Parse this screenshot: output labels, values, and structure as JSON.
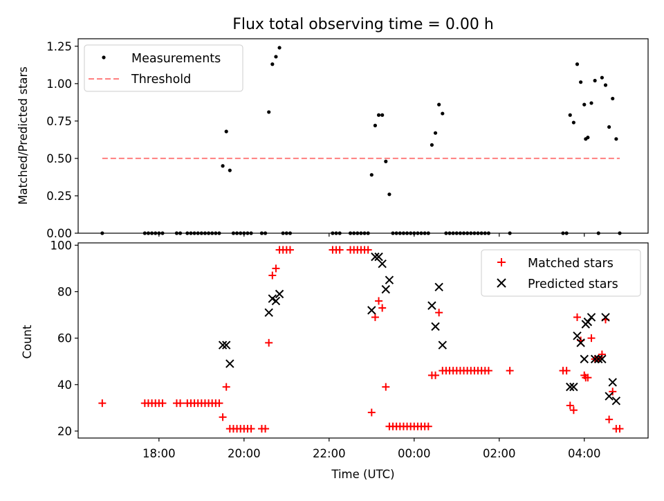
{
  "chart_data": [
    {
      "type": "scatter",
      "title": "Flux total observing time = 0.00 h",
      "xlabel": "",
      "ylabel": "Matched/Predicted stars",
      "xlim": [
        "2021-01-01T16:06",
        "2021-01-02T05:30"
      ],
      "ylim": [
        0,
        1.3
      ],
      "yticks": [
        "0.00",
        "0.25",
        "0.50",
        "0.75",
        "1.00",
        "1.25"
      ],
      "grid": false,
      "legend": "top-left",
      "series": [
        {
          "name": "Measurements",
          "color": "#000000",
          "points": [
            [
              "16:40",
              0
            ],
            [
              "17:40",
              0
            ],
            [
              "17:45",
              0
            ],
            [
              "17:50",
              0
            ],
            [
              "17:55",
              0
            ],
            [
              "18:00",
              0
            ],
            [
              "18:05",
              0
            ],
            [
              "18:25",
              0
            ],
            [
              "18:30",
              0
            ],
            [
              "18:40",
              0
            ],
            [
              "18:45",
              0
            ],
            [
              "18:50",
              0
            ],
            [
              "18:55",
              0
            ],
            [
              "19:00",
              0
            ],
            [
              "19:05",
              0
            ],
            [
              "19:10",
              0
            ],
            [
              "19:15",
              0
            ],
            [
              "19:20",
              0
            ],
            [
              "19:25",
              0
            ],
            [
              "19:30",
              0.45
            ],
            [
              "19:35",
              0.68
            ],
            [
              "19:40",
              0.42
            ],
            [
              "19:45",
              0
            ],
            [
              "19:50",
              0
            ],
            [
              "19:55",
              0
            ],
            [
              "20:00",
              0
            ],
            [
              "20:05",
              0
            ],
            [
              "20:10",
              0
            ],
            [
              "20:25",
              0
            ],
            [
              "20:30",
              0
            ],
            [
              "20:35",
              0.81
            ],
            [
              "20:40",
              1.13
            ],
            [
              "20:45",
              1.18
            ],
            [
              "20:50",
              1.24
            ],
            [
              "20:55",
              0
            ],
            [
              "21:00",
              0
            ],
            [
              "21:05",
              0
            ],
            [
              "22:05",
              0
            ],
            [
              "22:10",
              0
            ],
            [
              "22:15",
              0
            ],
            [
              "22:30",
              0
            ],
            [
              "22:35",
              0
            ],
            [
              "22:40",
              0
            ],
            [
              "22:45",
              0
            ],
            [
              "22:50",
              0
            ],
            [
              "22:55",
              0
            ],
            [
              "23:00",
              0.39
            ],
            [
              "23:05",
              0.72
            ],
            [
              "23:10",
              0.79
            ],
            [
              "23:15",
              0.79
            ],
            [
              "23:20",
              0.48
            ],
            [
              "23:25",
              0.26
            ],
            [
              "23:30",
              0
            ],
            [
              "23:35",
              0
            ],
            [
              "23:40",
              0
            ],
            [
              "23:45",
              0
            ],
            [
              "23:50",
              0
            ],
            [
              "23:55",
              0
            ],
            [
              "00:00",
              0
            ],
            [
              "00:05",
              0
            ],
            [
              "00:10",
              0
            ],
            [
              "00:15",
              0
            ],
            [
              "00:20",
              0
            ],
            [
              "00:25",
              0.59
            ],
            [
              "00:30",
              0.67
            ],
            [
              "00:35",
              0.86
            ],
            [
              "00:40",
              0.8
            ],
            [
              "00:45",
              0
            ],
            [
              "00:50",
              0
            ],
            [
              "00:55",
              0
            ],
            [
              "01:00",
              0
            ],
            [
              "01:05",
              0
            ],
            [
              "01:10",
              0
            ],
            [
              "01:15",
              0
            ],
            [
              "01:20",
              0
            ],
            [
              "01:25",
              0
            ],
            [
              "01:30",
              0
            ],
            [
              "01:35",
              0
            ],
            [
              "01:40",
              0
            ],
            [
              "01:45",
              0
            ],
            [
              "02:15",
              0
            ],
            [
              "03:30",
              0
            ],
            [
              "03:35",
              0
            ],
            [
              "03:40",
              0.79
            ],
            [
              "03:45",
              0.74
            ],
            [
              "03:50",
              1.13
            ],
            [
              "03:55",
              1.01
            ],
            [
              "04:00",
              0.86
            ],
            [
              "04:02",
              0.63
            ],
            [
              "04:05",
              0.64
            ],
            [
              "04:10",
              0.87
            ],
            [
              "04:15",
              1.02
            ],
            [
              "04:20",
              0
            ],
            [
              "04:25",
              1.04
            ],
            [
              "04:30",
              0.99
            ],
            [
              "04:35",
              0.71
            ],
            [
              "04:40",
              0.9
            ],
            [
              "04:45",
              0.63
            ],
            [
              "04:50",
              0
            ]
          ]
        },
        {
          "name": "Threshold",
          "color": "#ff7f7f",
          "style": "dashed",
          "x": [
            "16:40",
            "04:50"
          ],
          "y": [
            0.5,
            0.5
          ]
        }
      ]
    },
    {
      "type": "scatter",
      "title": "",
      "xlabel": "Time (UTC)",
      "ylabel": "Count",
      "xlim": [
        "2021-01-01T16:06",
        "2021-01-02T05:30"
      ],
      "ylim": [
        17,
        101
      ],
      "yticks": [
        "20",
        "40",
        "60",
        "80",
        "100"
      ],
      "xticks": [
        "18:00",
        "20:00",
        "22:00",
        "00:00",
        "02:00",
        "04:00"
      ],
      "grid": false,
      "legend": "top-right",
      "series": [
        {
          "name": "Matched stars",
          "color": "#ff0000",
          "marker": "+",
          "points": [
            [
              "16:40",
              32
            ],
            [
              "17:40",
              32
            ],
            [
              "17:45",
              32
            ],
            [
              "17:50",
              32
            ],
            [
              "17:55",
              32
            ],
            [
              "18:00",
              32
            ],
            [
              "18:05",
              32
            ],
            [
              "18:25",
              32
            ],
            [
              "18:30",
              32
            ],
            [
              "18:40",
              32
            ],
            [
              "18:45",
              32
            ],
            [
              "18:50",
              32
            ],
            [
              "18:55",
              32
            ],
            [
              "19:00",
              32
            ],
            [
              "19:05",
              32
            ],
            [
              "19:10",
              32
            ],
            [
              "19:15",
              32
            ],
            [
              "19:20",
              32
            ],
            [
              "19:25",
              32
            ],
            [
              "19:30",
              26
            ],
            [
              "19:35",
              39
            ],
            [
              "19:40",
              21
            ],
            [
              "19:45",
              21
            ],
            [
              "19:50",
              21
            ],
            [
              "19:55",
              21
            ],
            [
              "20:00",
              21
            ],
            [
              "20:05",
              21
            ],
            [
              "20:10",
              21
            ],
            [
              "20:25",
              21
            ],
            [
              "20:30",
              21
            ],
            [
              "20:35",
              58
            ],
            [
              "20:40",
              87
            ],
            [
              "20:45",
              90
            ],
            [
              "20:50",
              98
            ],
            [
              "20:55",
              98
            ],
            [
              "21:00",
              98
            ],
            [
              "21:05",
              98
            ],
            [
              "22:05",
              98
            ],
            [
              "22:10",
              98
            ],
            [
              "22:15",
              98
            ],
            [
              "22:30",
              98
            ],
            [
              "22:35",
              98
            ],
            [
              "22:40",
              98
            ],
            [
              "22:45",
              98
            ],
            [
              "22:50",
              98
            ],
            [
              "22:55",
              98
            ],
            [
              "23:00",
              28
            ],
            [
              "23:05",
              69
            ],
            [
              "23:10",
              76
            ],
            [
              "23:15",
              73
            ],
            [
              "23:20",
              39
            ],
            [
              "23:25",
              22
            ],
            [
              "23:30",
              22
            ],
            [
              "23:35",
              22
            ],
            [
              "23:40",
              22
            ],
            [
              "23:45",
              22
            ],
            [
              "23:50",
              22
            ],
            [
              "23:55",
              22
            ],
            [
              "00:00",
              22
            ],
            [
              "00:05",
              22
            ],
            [
              "00:10",
              22
            ],
            [
              "00:15",
              22
            ],
            [
              "00:20",
              22
            ],
            [
              "00:25",
              44
            ],
            [
              "00:30",
              44
            ],
            [
              "00:35",
              71
            ],
            [
              "00:40",
              46
            ],
            [
              "00:45",
              46
            ],
            [
              "00:50",
              46
            ],
            [
              "00:55",
              46
            ],
            [
              "01:00",
              46
            ],
            [
              "01:05",
              46
            ],
            [
              "01:10",
              46
            ],
            [
              "01:15",
              46
            ],
            [
              "01:20",
              46
            ],
            [
              "01:25",
              46
            ],
            [
              "01:30",
              46
            ],
            [
              "01:35",
              46
            ],
            [
              "01:40",
              46
            ],
            [
              "01:45",
              46
            ],
            [
              "02:15",
              46
            ],
            [
              "03:30",
              46
            ],
            [
              "03:35",
              46
            ],
            [
              "03:40",
              31
            ],
            [
              "03:45",
              29
            ],
            [
              "03:50",
              69
            ],
            [
              "03:55",
              59
            ],
            [
              "04:00",
              44
            ],
            [
              "04:02",
              43
            ],
            [
              "04:05",
              43
            ],
            [
              "04:10",
              60
            ],
            [
              "04:15",
              51
            ],
            [
              "04:20",
              51
            ],
            [
              "04:25",
              53
            ],
            [
              "04:30",
              68
            ],
            [
              "04:35",
              25
            ],
            [
              "04:40",
              37
            ],
            [
              "04:45",
              21
            ],
            [
              "04:50",
              21
            ]
          ]
        },
        {
          "name": "Predicted stars",
          "color": "#000000",
          "marker": "x",
          "points": [
            [
              "19:30",
              57
            ],
            [
              "19:35",
              57
            ],
            [
              "19:40",
              49
            ],
            [
              "20:35",
              71
            ],
            [
              "20:40",
              77
            ],
            [
              "20:45",
              76
            ],
            [
              "20:50",
              79
            ],
            [
              "23:00",
              72
            ],
            [
              "23:05",
              95
            ],
            [
              "23:10",
              95
            ],
            [
              "23:15",
              92
            ],
            [
              "23:20",
              81
            ],
            [
              "23:25",
              85
            ],
            [
              "00:25",
              74
            ],
            [
              "00:30",
              65
            ],
            [
              "00:35",
              82
            ],
            [
              "00:40",
              57
            ],
            [
              "03:40",
              39
            ],
            [
              "03:45",
              39
            ],
            [
              "03:50",
              61
            ],
            [
              "03:55",
              58
            ],
            [
              "04:00",
              51
            ],
            [
              "04:02",
              66
            ],
            [
              "04:05",
              67
            ],
            [
              "04:10",
              69
            ],
            [
              "04:15",
              51
            ],
            [
              "04:20",
              51
            ],
            [
              "04:25",
              51
            ],
            [
              "04:30",
              69
            ],
            [
              "04:35",
              35
            ],
            [
              "04:40",
              41
            ],
            [
              "04:45",
              33
            ]
          ]
        }
      ]
    }
  ]
}
